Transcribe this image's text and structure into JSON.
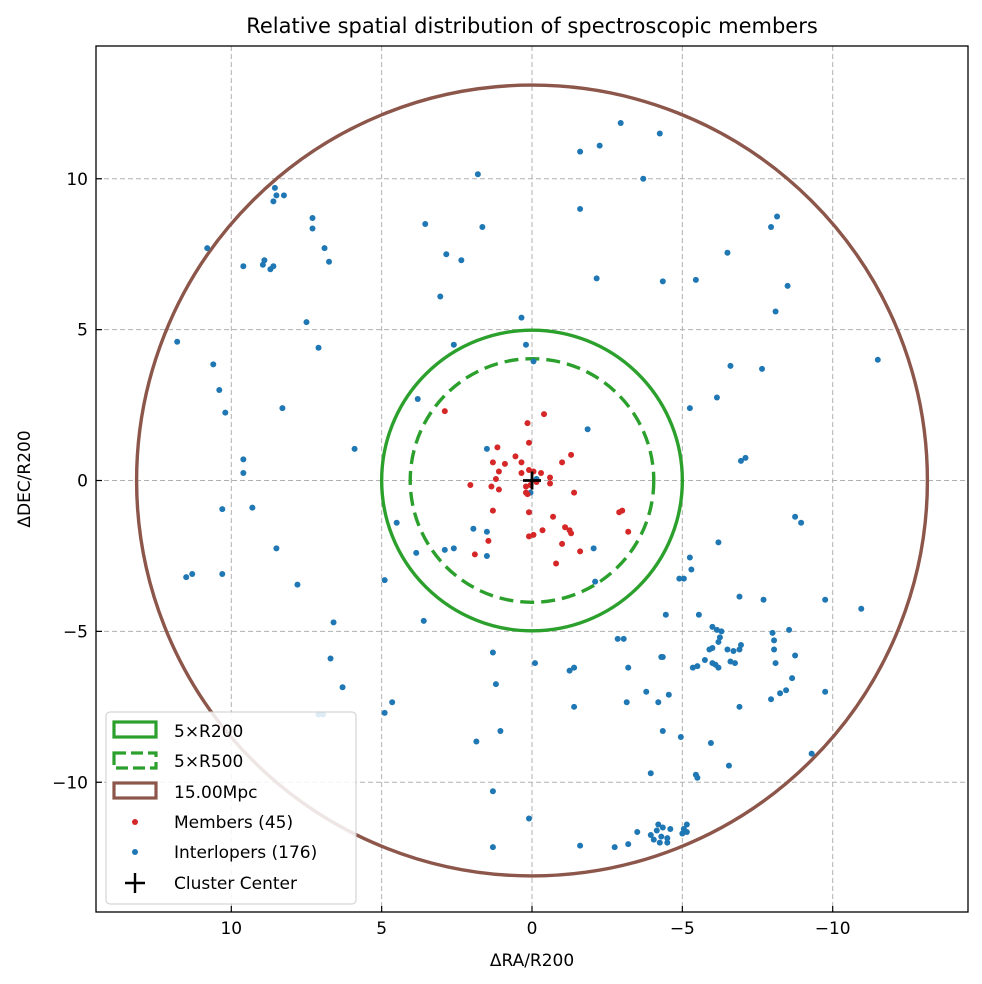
{
  "chart_data": {
    "type": "scatter",
    "title": "Relative spatial distribution of spectroscopic members",
    "xlabel": "ΔRA/R200",
    "ylabel": "ΔDEC/R200",
    "xlim": [
      14.5,
      -14.5
    ],
    "ylim": [
      -14.3,
      14.4
    ],
    "x_inverted": true,
    "grid": true,
    "x_ticks": [
      10,
      5,
      0,
      -5,
      -10
    ],
    "x_tick_labels": [
      "10",
      "5",
      "0",
      "−5",
      "−10"
    ],
    "y_ticks": [
      10,
      5,
      0,
      -5,
      -10
    ],
    "y_tick_labels": [
      "10",
      "5",
      "0",
      "−5",
      "−10"
    ],
    "legend_position": "lower-left",
    "circles": [
      {
        "name": "5×R200",
        "radius": 5.0,
        "color": "#2ca02c",
        "style": "solid"
      },
      {
        "name": "5×R500",
        "radius": 4.05,
        "color": "#2ca02c",
        "style": "dashed"
      },
      {
        "name": "15.00Mpc",
        "radius": 13.15,
        "color": "#8c564b",
        "style": "solid"
      }
    ],
    "series": [
      {
        "name": "Members (45)",
        "color": "#d62728",
        "points": [
          [
            2.9,
            2.3
          ],
          [
            0.15,
            1.9
          ],
          [
            -0.4,
            2.2
          ],
          [
            0.1,
            1.25
          ],
          [
            1.15,
            1.1
          ],
          [
            -1.3,
            0.85
          ],
          [
            1.3,
            0.6
          ],
          [
            0.55,
            0.8
          ],
          [
            0.35,
            0.6
          ],
          [
            0.9,
            0.55
          ],
          [
            -1.0,
            0.6
          ],
          [
            -0.3,
            0.25
          ],
          [
            -0.6,
            0.1
          ],
          [
            0.1,
            0.35
          ],
          [
            -0.05,
            0.3
          ],
          [
            1.1,
            0.3
          ],
          [
            0.35,
            0.25
          ],
          [
            1.2,
            0.05
          ],
          [
            -0.6,
            -0.1
          ],
          [
            0.2,
            -0.2
          ],
          [
            1.35,
            -0.2
          ],
          [
            0.05,
            -0.15
          ],
          [
            1.1,
            -0.3
          ],
          [
            0.2,
            -0.4
          ],
          [
            -1.4,
            -0.4
          ],
          [
            0.15,
            -0.45
          ],
          [
            -0.7,
            -1.2
          ],
          [
            -1.1,
            -1.55
          ],
          [
            -3.0,
            -1.0
          ],
          [
            -2.9,
            -1.05
          ],
          [
            1.3,
            -1.0
          ],
          [
            0.1,
            -1.05
          ],
          [
            -0.35,
            -1.65
          ],
          [
            -1.25,
            -1.65
          ],
          [
            -3.2,
            -1.7
          ],
          [
            -1.3,
            -1.75
          ],
          [
            -0.05,
            -1.8
          ],
          [
            0.1,
            -1.85
          ],
          [
            1.45,
            -2.0
          ],
          [
            -1.0,
            -2.1
          ],
          [
            1.9,
            -2.45
          ],
          [
            -1.6,
            -2.35
          ],
          [
            -0.8,
            -2.75
          ],
          [
            2.05,
            -0.15
          ],
          [
            -0.15,
            -0.05
          ]
        ]
      },
      {
        "name": "Interlopers (176)",
        "color": "#1f77b4",
        "points": [
          [
            11.8,
            4.6
          ],
          [
            10.8,
            7.7
          ],
          [
            9.6,
            7.1
          ],
          [
            8.9,
            7.3
          ],
          [
            8.95,
            7.15
          ],
          [
            8.7,
            7.0
          ],
          [
            8.6,
            7.1
          ],
          [
            8.55,
            9.7
          ],
          [
            8.5,
            9.45
          ],
          [
            8.6,
            9.25
          ],
          [
            8.25,
            9.45
          ],
          [
            7.3,
            8.7
          ],
          [
            7.3,
            8.35
          ],
          [
            6.9,
            7.7
          ],
          [
            6.75,
            7.25
          ],
          [
            7.5,
            5.25
          ],
          [
            7.1,
            4.4
          ],
          [
            10.6,
            3.85
          ],
          [
            10.4,
            3.0
          ],
          [
            10.2,
            2.25
          ],
          [
            9.6,
            0.7
          ],
          [
            9.6,
            0.25
          ],
          [
            8.3,
            2.4
          ],
          [
            5.9,
            1.05
          ],
          [
            10.3,
            -0.95
          ],
          [
            9.3,
            -0.9
          ],
          [
            11.5,
            -3.2
          ],
          [
            11.3,
            -3.1
          ],
          [
            10.3,
            -3.1
          ],
          [
            8.5,
            -2.25
          ],
          [
            7.8,
            -3.45
          ],
          [
            6.6,
            -4.7
          ],
          [
            6.7,
            -5.9
          ],
          [
            6.3,
            -6.85
          ],
          [
            7.1,
            -7.75
          ],
          [
            6.95,
            -7.75
          ],
          [
            4.9,
            -7.7
          ],
          [
            4.65,
            -7.35
          ],
          [
            3.6,
            -4.65
          ],
          [
            4.5,
            -1.4
          ],
          [
            3.85,
            -2.4
          ],
          [
            4.9,
            -3.3
          ],
          [
            2.9,
            -2.3
          ],
          [
            2.6,
            -2.25
          ],
          [
            2.85,
            7.5
          ],
          [
            3.55,
            8.5
          ],
          [
            2.35,
            7.3
          ],
          [
            1.8,
            10.15
          ],
          [
            1.65,
            8.4
          ],
          [
            3.05,
            6.1
          ],
          [
            2.6,
            4.5
          ],
          [
            0.35,
            5.4
          ],
          [
            0.2,
            4.5
          ],
          [
            3.8,
            2.7
          ],
          [
            1.5,
            1.05
          ],
          [
            1.95,
            -1.6
          ],
          [
            1.5,
            -1.7
          ],
          [
            1.5,
            -2.5
          ],
          [
            1.3,
            -5.7
          ],
          [
            1.2,
            -6.75
          ],
          [
            1.85,
            -8.65
          ],
          [
            1.3,
            -10.3
          ],
          [
            1.3,
            -12.15
          ],
          [
            1.05,
            -8.3
          ],
          [
            0.1,
            -11.2
          ],
          [
            -0.1,
            -6.05
          ],
          [
            -0.05,
            3.95
          ],
          [
            0.05,
            -0.4
          ],
          [
            -0.15,
            0.05
          ],
          [
            -1.6,
            10.9
          ],
          [
            -1.6,
            9.0
          ],
          [
            -2.25,
            11.1
          ],
          [
            -2.15,
            6.7
          ],
          [
            -2.95,
            11.85
          ],
          [
            -3.7,
            10.0
          ],
          [
            -4.25,
            11.5
          ],
          [
            -4.35,
            6.6
          ],
          [
            -5.45,
            6.65
          ],
          [
            -5.25,
            2.4
          ],
          [
            -6.15,
            2.75
          ],
          [
            -6.6,
            3.8
          ],
          [
            -7.65,
            3.7
          ],
          [
            -6.5,
            7.55
          ],
          [
            -7.95,
            8.4
          ],
          [
            -8.15,
            8.75
          ],
          [
            -8.1,
            5.6
          ],
          [
            -8.5,
            6.45
          ],
          [
            -11.5,
            4.0
          ],
          [
            -6.95,
            0.65
          ],
          [
            -7.1,
            0.75
          ],
          [
            -6.2,
            -2.05
          ],
          [
            -5.05,
            -3.25
          ],
          [
            -5.25,
            -2.55
          ],
          [
            -5.3,
            -2.95
          ],
          [
            -8.75,
            -1.2
          ],
          [
            -8.95,
            -1.4
          ],
          [
            -9.75,
            -3.95
          ],
          [
            -10.95,
            -4.25
          ],
          [
            -9.75,
            -7.0
          ],
          [
            -9.3,
            -9.05
          ],
          [
            -7.7,
            -3.95
          ],
          [
            -6.9,
            -3.85
          ],
          [
            -6.15,
            -4.95
          ],
          [
            -5.55,
            -4.45
          ],
          [
            -6.0,
            -4.85
          ],
          [
            -6.3,
            -5.0
          ],
          [
            -6.25,
            -5.2
          ],
          [
            -6.2,
            -5.35
          ],
          [
            -6.0,
            -5.55
          ],
          [
            -5.9,
            -5.6
          ],
          [
            -6.5,
            -5.6
          ],
          [
            -6.7,
            -5.65
          ],
          [
            -6.9,
            -5.6
          ],
          [
            -6.95,
            -5.45
          ],
          [
            -5.75,
            -5.95
          ],
          [
            -5.5,
            -6.15
          ],
          [
            -5.35,
            -6.2
          ],
          [
            -6.0,
            -6.05
          ],
          [
            -6.2,
            -6.2
          ],
          [
            -6.1,
            -6.1
          ],
          [
            -6.6,
            -6.0
          ],
          [
            -6.75,
            -6.05
          ],
          [
            -6.9,
            -7.5
          ],
          [
            -8.0,
            -5.05
          ],
          [
            -8.05,
            -5.3
          ],
          [
            -8.05,
            -5.6
          ],
          [
            -8.55,
            -4.95
          ],
          [
            -8.1,
            -6.05
          ],
          [
            -8.75,
            -5.8
          ],
          [
            -8.65,
            -6.55
          ],
          [
            -8.45,
            -6.95
          ],
          [
            -8.25,
            -7.05
          ],
          [
            -7.95,
            -7.25
          ],
          [
            -3.05,
            -5.25
          ],
          [
            -4.45,
            -4.45
          ],
          [
            -4.9,
            -3.25
          ],
          [
            -2.1,
            -3.35
          ],
          [
            -2.05,
            -2.25
          ],
          [
            -1.85,
            1.7
          ],
          [
            -1.4,
            -6.2
          ],
          [
            -1.4,
            -7.5
          ],
          [
            -1.25,
            -6.3
          ],
          [
            -2.85,
            -5.25
          ],
          [
            -3.2,
            -6.2
          ],
          [
            -3.15,
            -7.35
          ],
          [
            -3.8,
            -7.0
          ],
          [
            -4.2,
            -7.35
          ],
          [
            -4.55,
            -7.1
          ],
          [
            -4.3,
            -5.85
          ],
          [
            -4.35,
            -5.85
          ],
          [
            -4.35,
            -8.3
          ],
          [
            -4.95,
            -8.5
          ],
          [
            -5.95,
            -8.7
          ],
          [
            -6.55,
            -9.45
          ],
          [
            -5.45,
            -9.75
          ],
          [
            -5.5,
            -9.85
          ],
          [
            -3.95,
            -9.7
          ],
          [
            -2.75,
            -12.15
          ],
          [
            -3.2,
            -12.05
          ],
          [
            -1.6,
            -12.1
          ],
          [
            -3.5,
            -11.65
          ],
          [
            -3.95,
            -11.75
          ],
          [
            -4.05,
            -11.9
          ],
          [
            -4.15,
            -11.6
          ],
          [
            -4.2,
            -11.4
          ],
          [
            -4.35,
            -11.5
          ],
          [
            -4.3,
            -11.8
          ],
          [
            -4.5,
            -11.85
          ],
          [
            -4.25,
            -12.0
          ],
          [
            -4.5,
            -12.0
          ],
          [
            -4.6,
            -11.55
          ],
          [
            -5.05,
            -11.55
          ],
          [
            -5.15,
            -11.4
          ],
          [
            -5.15,
            -11.65
          ],
          [
            -5.0,
            -11.7
          ]
        ]
      }
    ],
    "center": {
      "name": "Cluster Center",
      "x": 0,
      "y": 0,
      "color": "#000000"
    }
  }
}
